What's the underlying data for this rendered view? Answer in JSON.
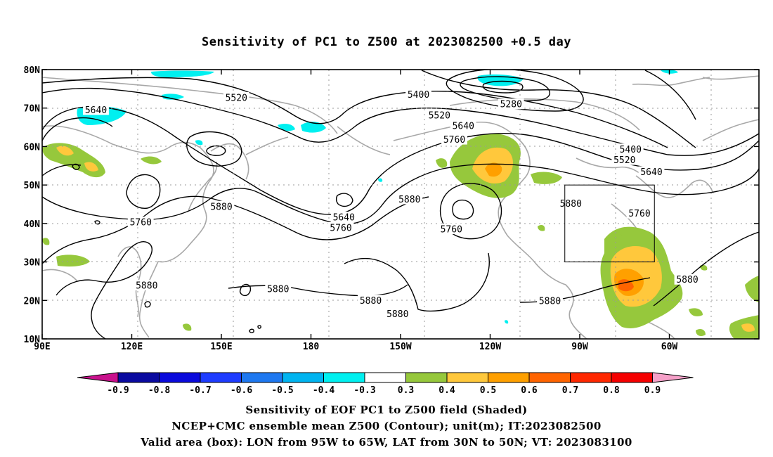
{
  "title": "Sensitivity of PC1 to Z500 at 2023082500 +0.5 day",
  "map": {
    "lat_labels": [
      "80N",
      "70N",
      "60N",
      "50N",
      "40N",
      "30N",
      "20N",
      "10N"
    ],
    "lon_labels": [
      "90E",
      "120E",
      "150E",
      "180",
      "150W",
      "120W",
      "90W",
      "60W"
    ],
    "contour_labels": [
      {
        "text": "5640",
        "lon": 108,
        "lat": 69.5
      },
      {
        "text": "5520",
        "lon": 155,
        "lat": 72.7
      },
      {
        "text": "5400",
        "lon": 216,
        "lat": 73.5
      },
      {
        "text": "5280",
        "lon": 247,
        "lat": 71.0
      },
      {
        "text": "5520",
        "lon": 223,
        "lat": 68.1
      },
      {
        "text": "5640",
        "lon": 231,
        "lat": 65.4
      },
      {
        "text": "5760",
        "lon": 228,
        "lat": 61.8
      },
      {
        "text": "5400",
        "lon": 287,
        "lat": 59.3
      },
      {
        "text": "5520",
        "lon": 285,
        "lat": 56.5
      },
      {
        "text": "5640",
        "lon": 294,
        "lat": 53.4
      },
      {
        "text": "5880",
        "lon": 150,
        "lat": 44.4
      },
      {
        "text": "5760",
        "lon": 123,
        "lat": 40.3
      },
      {
        "text": "5640",
        "lon": 191,
        "lat": 41.6
      },
      {
        "text": "5760",
        "lon": 190,
        "lat": 38.9
      },
      {
        "text": "5880",
        "lon": 213,
        "lat": 46.3
      },
      {
        "text": "5760",
        "lon": 227,
        "lat": 38.5
      },
      {
        "text": "5880",
        "lon": 267,
        "lat": 45.2
      },
      {
        "text": "5760",
        "lon": 290,
        "lat": 42.6
      },
      {
        "text": "5880",
        "lon": 125,
        "lat": 23.9
      },
      {
        "text": "5880",
        "lon": 169,
        "lat": 23.0
      },
      {
        "text": "5880",
        "lon": 200,
        "lat": 20.0
      },
      {
        "text": "5880",
        "lon": 209,
        "lat": 16.5
      },
      {
        "text": "5880",
        "lon": 260,
        "lat": 19.9
      },
      {
        "text": "5880",
        "lon": 306,
        "lat": 25.4
      }
    ],
    "box": {
      "lon_min": 265,
      "lon_max": 295,
      "lat_min": 30,
      "lat_max": 50
    }
  },
  "colorbar": {
    "labels": [
      "-0.9",
      "-0.8",
      "-0.7",
      "-0.6",
      "-0.5",
      "-0.4",
      "-0.3",
      "0.3",
      "0.4",
      "0.5",
      "0.6",
      "0.7",
      "0.8",
      "0.9"
    ],
    "colors": [
      "#c8118c",
      "#0a0aa0",
      "#0a0adc",
      "#1e3cff",
      "#1e78f0",
      "#00b4f0",
      "#00f0f0",
      "#ffffff",
      "#96c83c",
      "#ffc83c",
      "#ffa000",
      "#ff6400",
      "#ff2800",
      "#f50000",
      "#f5a0c8"
    ]
  },
  "captions": [
    "Sensitivity of EOF PC1 to Z500 field (Shaded)",
    "NCEP+CMC ensemble mean Z500 (Contour); unit(m); IT:2023082500",
    "Valid area (box): LON from 95W to 65W, LAT from 30N to 50N; VT: 2023083100"
  ]
}
